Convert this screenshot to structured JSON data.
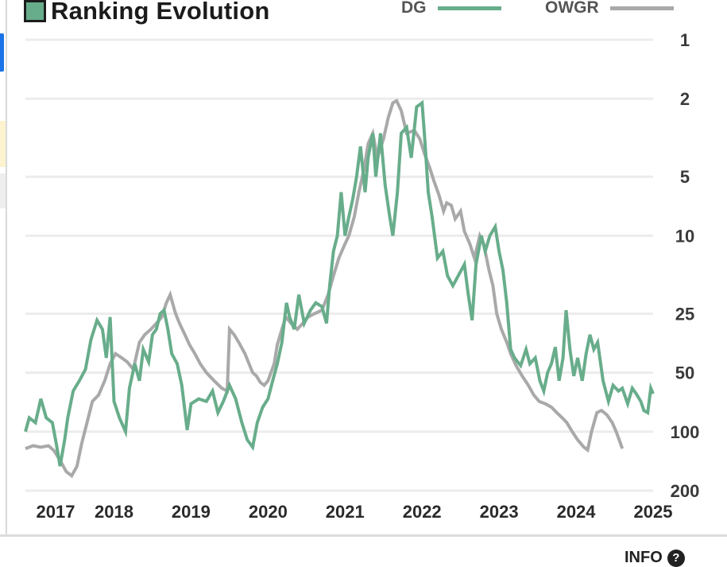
{
  "chart_data": {
    "type": "line",
    "title": "Ranking Evolution",
    "y_scale": "log",
    "y_inverted": true,
    "ylim": [
      1,
      200
    ],
    "grid": true,
    "legend_position": "top-right",
    "y_ticks": [
      1,
      2,
      5,
      10,
      25,
      50,
      100,
      200
    ],
    "y_tick_labels": [
      "1",
      "2",
      "5",
      "10",
      "25",
      "50",
      "100",
      "200"
    ],
    "x_ticks": [
      2017,
      2018,
      2019,
      2020,
      2021,
      2022,
      2023,
      2024,
      2025
    ],
    "x_tick_labels": [
      "2017",
      "2018",
      "2019",
      "2020",
      "2021",
      "2022",
      "2023",
      "2024",
      "2025"
    ],
    "xlim": [
      2016.85,
      2025.0
    ],
    "series": [
      {
        "name": "DG",
        "color": "#68ad8b",
        "points": [
          [
            2016.85,
            100
          ],
          [
            2016.9,
            85
          ],
          [
            2016.98,
            90
          ],
          [
            2017.05,
            68
          ],
          [
            2017.12,
            85
          ],
          [
            2017.2,
            90
          ],
          [
            2017.25,
            115
          ],
          [
            2017.3,
            150
          ],
          [
            2017.36,
            110
          ],
          [
            2017.4,
            85
          ],
          [
            2017.47,
            62
          ],
          [
            2017.55,
            55
          ],
          [
            2017.63,
            48
          ],
          [
            2017.7,
            34
          ],
          [
            2017.78,
            27
          ],
          [
            2017.85,
            30
          ],
          [
            2017.9,
            42
          ],
          [
            2017.95,
            26
          ],
          [
            2018.0,
            70
          ],
          [
            2018.07,
            85
          ],
          [
            2018.15,
            100
          ],
          [
            2018.2,
            60
          ],
          [
            2018.27,
            45
          ],
          [
            2018.33,
            55
          ],
          [
            2018.38,
            38
          ],
          [
            2018.45,
            44
          ],
          [
            2018.5,
            32
          ],
          [
            2018.55,
            30
          ],
          [
            2018.6,
            25
          ],
          [
            2018.65,
            24
          ],
          [
            2018.7,
            30
          ],
          [
            2018.75,
            40
          ],
          [
            2018.82,
            45
          ],
          [
            2018.88,
            58
          ],
          [
            2018.95,
            98
          ],
          [
            2019.0,
            72
          ],
          [
            2019.1,
            68
          ],
          [
            2019.2,
            70
          ],
          [
            2019.28,
            62
          ],
          [
            2019.35,
            80
          ],
          [
            2019.42,
            70
          ],
          [
            2019.5,
            58
          ],
          [
            2019.58,
            68
          ],
          [
            2019.66,
            90
          ],
          [
            2019.73,
            110
          ],
          [
            2019.8,
            120
          ],
          [
            2019.86,
            90
          ],
          [
            2019.93,
            75
          ],
          [
            2020.0,
            68
          ],
          [
            2020.06,
            55
          ],
          [
            2020.12,
            45
          ],
          [
            2020.18,
            35
          ],
          [
            2020.24,
            22
          ],
          [
            2020.28,
            26
          ],
          [
            2020.34,
            30
          ],
          [
            2020.4,
            20
          ],
          [
            2020.47,
            28
          ],
          [
            2020.55,
            24
          ],
          [
            2020.62,
            22
          ],
          [
            2020.7,
            23
          ],
          [
            2020.76,
            28
          ],
          [
            2020.8,
            18
          ],
          [
            2020.85,
            12
          ],
          [
            2020.9,
            10
          ],
          [
            2020.95,
            6
          ],
          [
            2021.0,
            10
          ],
          [
            2021.05,
            8
          ],
          [
            2021.1,
            6.5
          ],
          [
            2021.15,
            5
          ],
          [
            2021.2,
            3.5
          ],
          [
            2021.26,
            6
          ],
          [
            2021.3,
            4
          ],
          [
            2021.36,
            3
          ],
          [
            2021.4,
            5
          ],
          [
            2021.46,
            3
          ],
          [
            2021.52,
            5.5
          ],
          [
            2021.58,
            8
          ],
          [
            2021.62,
            10
          ],
          [
            2021.68,
            6
          ],
          [
            2021.73,
            3
          ],
          [
            2021.8,
            2.8
          ],
          [
            2021.86,
            4
          ],
          [
            2021.93,
            2.2
          ],
          [
            2022.0,
            2.1
          ],
          [
            2022.03,
            3
          ],
          [
            2022.08,
            6
          ],
          [
            2022.13,
            8
          ],
          [
            2022.2,
            13
          ],
          [
            2022.27,
            12
          ],
          [
            2022.33,
            16
          ],
          [
            2022.4,
            18
          ],
          [
            2022.47,
            16
          ],
          [
            2022.55,
            14
          ],
          [
            2022.6,
            20
          ],
          [
            2022.65,
            27
          ],
          [
            2022.7,
            14
          ],
          [
            2022.77,
            10
          ],
          [
            2022.82,
            12
          ],
          [
            2022.88,
            10
          ],
          [
            2022.95,
            9
          ],
          [
            2023.0,
            12
          ],
          [
            2023.05,
            15
          ],
          [
            2023.1,
            22
          ],
          [
            2023.15,
            38
          ],
          [
            2023.2,
            42
          ],
          [
            2023.28,
            46
          ],
          [
            2023.35,
            38
          ],
          [
            2023.4,
            45
          ],
          [
            2023.47,
            42
          ],
          [
            2023.53,
            55
          ],
          [
            2023.58,
            62
          ],
          [
            2023.63,
            50
          ],
          [
            2023.68,
            45
          ],
          [
            2023.73,
            37
          ],
          [
            2023.78,
            55
          ],
          [
            2023.83,
            42
          ],
          [
            2023.87,
            24
          ],
          [
            2023.92,
            38
          ],
          [
            2023.97,
            52
          ],
          [
            2024.02,
            42
          ],
          [
            2024.08,
            55
          ],
          [
            2024.13,
            40
          ],
          [
            2024.18,
            32
          ],
          [
            2024.23,
            38
          ],
          [
            2024.28,
            35
          ],
          [
            2024.35,
            55
          ],
          [
            2024.42,
            70
          ],
          [
            2024.48,
            58
          ],
          [
            2024.55,
            62
          ],
          [
            2024.6,
            60
          ],
          [
            2024.67,
            72
          ],
          [
            2024.73,
            60
          ],
          [
            2024.78,
            64
          ],
          [
            2024.84,
            70
          ],
          [
            2024.88,
            78
          ],
          [
            2024.93,
            80
          ],
          [
            2024.97,
            60
          ],
          [
            2025.0,
            64
          ]
        ]
      },
      {
        "name": "OWGR",
        "color": "#a9a9a9",
        "points": [
          [
            2016.85,
            122
          ],
          [
            2016.95,
            118
          ],
          [
            2017.05,
            120
          ],
          [
            2017.15,
            118
          ],
          [
            2017.22,
            125
          ],
          [
            2017.3,
            140
          ],
          [
            2017.38,
            160
          ],
          [
            2017.45,
            168
          ],
          [
            2017.52,
            150
          ],
          [
            2017.58,
            115
          ],
          [
            2017.65,
            90
          ],
          [
            2017.72,
            70
          ],
          [
            2017.8,
            65
          ],
          [
            2017.88,
            55
          ],
          [
            2017.95,
            45
          ],
          [
            2018.02,
            40
          ],
          [
            2018.1,
            42
          ],
          [
            2018.17,
            44
          ],
          [
            2018.25,
            48
          ],
          [
            2018.33,
            35
          ],
          [
            2018.4,
            32
          ],
          [
            2018.48,
            30
          ],
          [
            2018.55,
            28
          ],
          [
            2018.62,
            26
          ],
          [
            2018.68,
            22
          ],
          [
            2018.73,
            20
          ],
          [
            2018.8,
            25
          ],
          [
            2018.85,
            28
          ],
          [
            2018.92,
            32
          ],
          [
            2018.98,
            36
          ],
          [
            2019.05,
            40
          ],
          [
            2019.12,
            45
          ],
          [
            2019.2,
            50
          ],
          [
            2019.3,
            55
          ],
          [
            2019.4,
            60
          ],
          [
            2019.47,
            62
          ],
          [
            2019.5,
            30
          ],
          [
            2019.56,
            32
          ],
          [
            2019.62,
            35
          ],
          [
            2019.7,
            40
          ],
          [
            2019.8,
            50
          ],
          [
            2019.85,
            52
          ],
          [
            2019.9,
            56
          ],
          [
            2019.95,
            58
          ],
          [
            2020.0,
            55
          ],
          [
            2020.08,
            45
          ],
          [
            2020.12,
            36
          ],
          [
            2020.18,
            30
          ],
          [
            2020.23,
            26
          ],
          [
            2020.3,
            28
          ],
          [
            2020.38,
            30
          ],
          [
            2020.45,
            28
          ],
          [
            2020.52,
            26
          ],
          [
            2020.6,
            25
          ],
          [
            2020.7,
            24
          ],
          [
            2020.78,
            20
          ],
          [
            2020.85,
            16
          ],
          [
            2020.92,
            13
          ],
          [
            2021.0,
            11
          ],
          [
            2021.05,
            10
          ],
          [
            2021.12,
            8
          ],
          [
            2021.18,
            6
          ],
          [
            2021.25,
            4.5
          ],
          [
            2021.3,
            3.4
          ],
          [
            2021.36,
            3
          ],
          [
            2021.42,
            4
          ],
          [
            2021.5,
            3.2
          ],
          [
            2021.56,
            2.5
          ],
          [
            2021.62,
            2.1
          ],
          [
            2021.67,
            2.05
          ],
          [
            2021.73,
            2.3
          ],
          [
            2021.8,
            3
          ],
          [
            2021.9,
            2.9
          ],
          [
            2021.97,
            3.2
          ],
          [
            2022.03,
            3.8
          ],
          [
            2022.1,
            4.5
          ],
          [
            2022.15,
            5.2
          ],
          [
            2022.22,
            6.2
          ],
          [
            2022.28,
            7.5
          ],
          [
            2022.32,
            6.8
          ],
          [
            2022.38,
            7
          ],
          [
            2022.43,
            8.2
          ],
          [
            2022.5,
            7.5
          ],
          [
            2022.55,
            9.5
          ],
          [
            2022.62,
            11
          ],
          [
            2022.68,
            13
          ],
          [
            2022.75,
            10
          ],
          [
            2022.8,
            11
          ],
          [
            2022.87,
            15
          ],
          [
            2022.92,
            18
          ],
          [
            2022.97,
            25
          ],
          [
            2023.03,
            30
          ],
          [
            2023.1,
            35
          ],
          [
            2023.15,
            40
          ],
          [
            2023.22,
            46
          ],
          [
            2023.3,
            52
          ],
          [
            2023.38,
            58
          ],
          [
            2023.45,
            65
          ],
          [
            2023.52,
            70
          ],
          [
            2023.6,
            72
          ],
          [
            2023.68,
            75
          ],
          [
            2023.75,
            80
          ],
          [
            2023.82,
            85
          ],
          [
            2023.88,
            90
          ],
          [
            2023.95,
            100
          ],
          [
            2024.02,
            110
          ],
          [
            2024.1,
            120
          ],
          [
            2024.15,
            124
          ],
          [
            2024.2,
            100
          ],
          [
            2024.27,
            80
          ],
          [
            2024.33,
            78
          ],
          [
            2024.4,
            82
          ],
          [
            2024.47,
            90
          ],
          [
            2024.52,
            100
          ],
          [
            2024.56,
            110
          ],
          [
            2024.6,
            122
          ]
        ]
      }
    ]
  },
  "footer": {
    "info_label": "INFO",
    "info_icon": "info-icon"
  }
}
